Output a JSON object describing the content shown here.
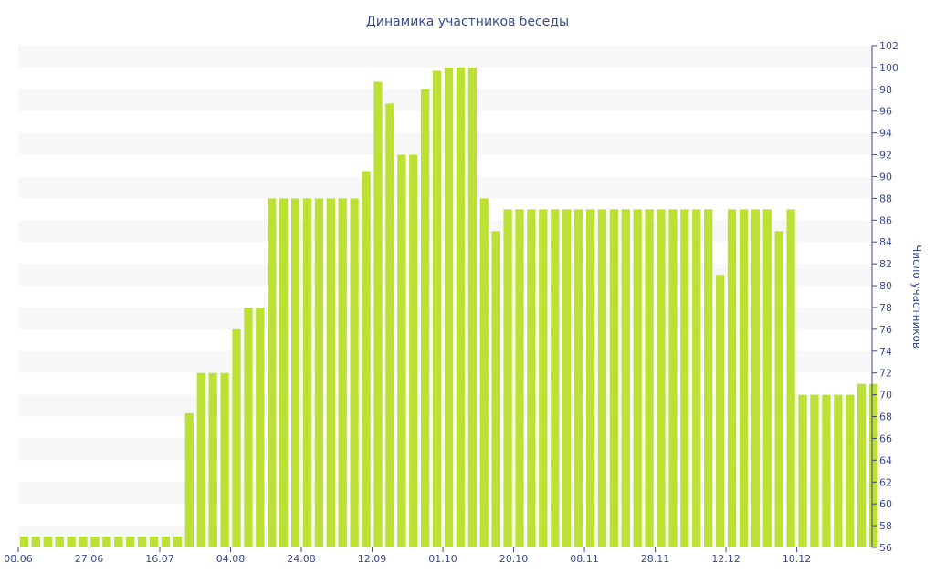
{
  "chart_data": {
    "type": "bar",
    "title": "Динамика участников беседы",
    "xlabel": "",
    "ylabel": "Число участников",
    "ylim": [
      56,
      102
    ],
    "y_ticks": [
      56,
      58,
      60,
      62,
      64,
      66,
      68,
      70,
      72,
      74,
      76,
      78,
      80,
      82,
      84,
      86,
      88,
      90,
      92,
      94,
      96,
      98,
      100,
      102
    ],
    "x_tick_labels": [
      {
        "label": "08.06",
        "index": 0
      },
      {
        "label": "27.06",
        "index": 6
      },
      {
        "label": "16.07",
        "index": 12
      },
      {
        "label": "04.08",
        "index": 18
      },
      {
        "label": "24.08",
        "index": 24
      },
      {
        "label": "12.09",
        "index": 30
      },
      {
        "label": "01.10",
        "index": 36
      },
      {
        "label": "20.10",
        "index": 42
      },
      {
        "label": "08.11",
        "index": 48
      },
      {
        "label": "28.11",
        "index": 54
      },
      {
        "label": "12.12",
        "index": 60
      },
      {
        "label": "18.12",
        "index": 66
      }
    ],
    "values": [
      57,
      57,
      57,
      57,
      57,
      57,
      57,
      57,
      57,
      57,
      57,
      57,
      57,
      57,
      68.3,
      72,
      72,
      72,
      76,
      78,
      78,
      88,
      88,
      88,
      88,
      88,
      88,
      88,
      88,
      90.5,
      98.7,
      96.7,
      92,
      92,
      98,
      99.7,
      100,
      100,
      100,
      88,
      85,
      87,
      87,
      87,
      87,
      87,
      87,
      87,
      87,
      87,
      87,
      87,
      87,
      87,
      87,
      87,
      87,
      87,
      87,
      81,
      87,
      87,
      87,
      87,
      85,
      87,
      70,
      70,
      70,
      70,
      70,
      71,
      71
    ],
    "grid": "alternating horizontal bands",
    "colors": {
      "bar": "#bde034",
      "axis_text": "#3b4a8c",
      "band": "#f7f7f7"
    }
  }
}
